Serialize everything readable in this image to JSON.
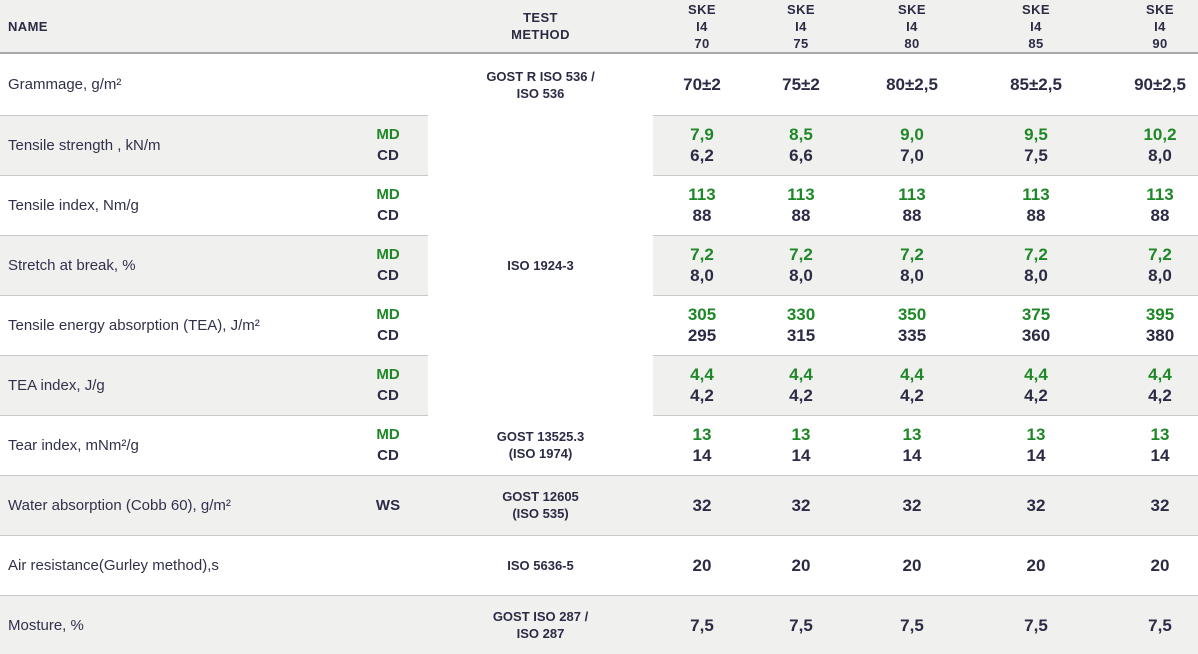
{
  "colors": {
    "accent_green": "#1e8727",
    "navy": "#2b2b45",
    "row_shade": "#f0f0ee"
  },
  "table": {
    "header": {
      "name": "NAME",
      "direction": "",
      "test_method_lines": [
        "TEST",
        "METHOD"
      ],
      "products": [
        {
          "lines": [
            "SKE",
            "I4",
            "70"
          ]
        },
        {
          "lines": [
            "SKE",
            "I4",
            "75"
          ]
        },
        {
          "lines": [
            "SKE",
            "I4",
            "80"
          ]
        },
        {
          "lines": [
            "SKE",
            "I4",
            "85"
          ]
        },
        {
          "lines": [
            "SKE",
            "I4",
            "90"
          ]
        }
      ]
    },
    "rows": [
      {
        "name": "Grammage, g/m²",
        "dir": [],
        "method": {
          "lines": [
            "GOST R ISO 536 /",
            "ISO 536"
          ],
          "rowspan": 1
        },
        "values": [
          [
            "70±2"
          ],
          [
            "75±2"
          ],
          [
            "80±2,5"
          ],
          [
            "85±2,5"
          ],
          [
            "90±2,5"
          ]
        ],
        "shaded": false
      },
      {
        "name": "Tensile strength , kN/m",
        "dir": [
          "MD",
          "CD"
        ],
        "method": {
          "lines": [
            "ISO 1924-3"
          ],
          "rowspan": 5
        },
        "values": [
          [
            "7,9",
            "6,2"
          ],
          [
            "8,5",
            "6,6"
          ],
          [
            "9,0",
            "7,0"
          ],
          [
            "9,5",
            "7,5"
          ],
          [
            "10,2",
            "8,0"
          ]
        ],
        "shaded": true
      },
      {
        "name": "Tensile index, Nm/g",
        "dir": [
          "MD",
          "CD"
        ],
        "method": null,
        "values": [
          [
            "113",
            "88"
          ],
          [
            "113",
            "88"
          ],
          [
            "113",
            "88"
          ],
          [
            "113",
            "88"
          ],
          [
            "113",
            "88"
          ]
        ],
        "shaded": false
      },
      {
        "name": "Stretch at break, %",
        "dir": [
          "MD",
          "CD"
        ],
        "method": null,
        "values": [
          [
            "7,2",
            "8,0"
          ],
          [
            "7,2",
            "8,0"
          ],
          [
            "7,2",
            "8,0"
          ],
          [
            "7,2",
            "8,0"
          ],
          [
            "7,2",
            "8,0"
          ]
        ],
        "shaded": true
      },
      {
        "name": "Tensile energy absorption (TEA), J/m²",
        "dir": [
          "MD",
          "CD"
        ],
        "method": null,
        "values": [
          [
            "305",
            "295"
          ],
          [
            "330",
            "315"
          ],
          [
            "350",
            "335"
          ],
          [
            "375",
            "360"
          ],
          [
            "395",
            "380"
          ]
        ],
        "shaded": false
      },
      {
        "name": "TEA index, J/g",
        "dir": [
          "MD",
          "CD"
        ],
        "method": null,
        "values": [
          [
            "4,4",
            "4,2"
          ],
          [
            "4,4",
            "4,2"
          ],
          [
            "4,4",
            "4,2"
          ],
          [
            "4,4",
            "4,2"
          ],
          [
            "4,4",
            "4,2"
          ]
        ],
        "shaded": true
      },
      {
        "name": "Tear index, mNm²/g",
        "dir": [
          "MD",
          "CD"
        ],
        "method": {
          "lines": [
            "GOST 13525.3",
            "(ISO 1974)"
          ],
          "rowspan": 1
        },
        "values": [
          [
            "13",
            "14"
          ],
          [
            "13",
            "14"
          ],
          [
            "13",
            "14"
          ],
          [
            "13",
            "14"
          ],
          [
            "13",
            "14"
          ]
        ],
        "shaded": false
      },
      {
        "name": "Water absorption (Cobb 60), g/m²",
        "dir": [
          "WS"
        ],
        "method": {
          "lines": [
            "GOST 12605",
            "(ISO 535)"
          ],
          "rowspan": 1
        },
        "values": [
          [
            "32"
          ],
          [
            "32"
          ],
          [
            "32"
          ],
          [
            "32"
          ],
          [
            "32"
          ]
        ],
        "shaded": true
      },
      {
        "name": "Air resistance(Gurley method),s",
        "dir": [],
        "method": {
          "lines": [
            "ISO 5636-5"
          ],
          "rowspan": 1
        },
        "values": [
          [
            "20"
          ],
          [
            "20"
          ],
          [
            "20"
          ],
          [
            "20"
          ],
          [
            "20"
          ]
        ],
        "shaded": false
      },
      {
        "name": "Mosture, %",
        "dir": [],
        "method": {
          "lines": [
            "GOST ISO 287 /",
            "ISO 287"
          ],
          "rowspan": 1
        },
        "values": [
          [
            "7,5"
          ],
          [
            "7,5"
          ],
          [
            "7,5"
          ],
          [
            "7,5"
          ],
          [
            "7,5"
          ]
        ],
        "shaded": true
      }
    ]
  }
}
